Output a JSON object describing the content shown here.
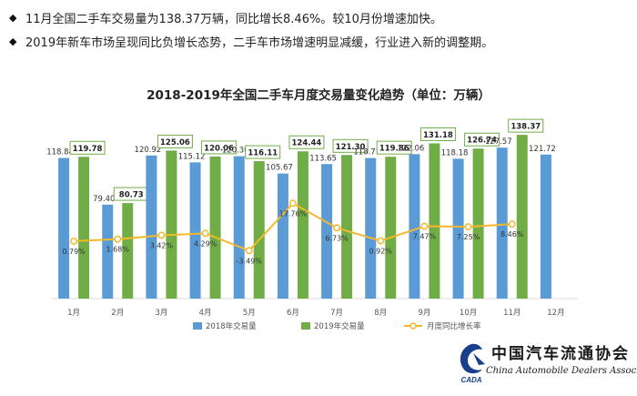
{
  "bullets": [
    {
      "marker": "◆",
      "text": "11月全国二手车交易量为138.37万辆，同比增长8.46%。较10月份增速加快。"
    },
    {
      "marker": "◆",
      "text": "2019年新车市场呈现同比负增长态势，二手车市场增速明显减缓，行业进入新的调整期。"
    }
  ],
  "logo": {
    "cn": "中国汽车流通协会",
    "en": "China Automobile Dealers Association",
    "mark_text": "CADA"
  },
  "chart_data": {
    "type": "bar",
    "title": "2018-2019年全国二手车月度交易量变化趋势（单位：万辆）",
    "categories": [
      "1月",
      "2月",
      "3月",
      "4月",
      "5月",
      "6月",
      "7月",
      "8月",
      "9月",
      "10月",
      "11月",
      "12月"
    ],
    "series": [
      {
        "name": "2018年交易量",
        "kind": "bar",
        "color": "#5b9bd5",
        "values": [
          118.84,
          79.4,
          120.92,
          115.12,
          120.3,
          105.67,
          113.65,
          118.77,
          122.06,
          118.18,
          127.57,
          121.72
        ],
        "labels": [
          "118.84",
          "79.40",
          "120.92",
          "115.12",
          "120.30",
          "105.67",
          "113.65",
          "118.77",
          "122.06",
          "118.18",
          "127.57",
          "121.72"
        ]
      },
      {
        "name": "2019年交易量",
        "kind": "bar",
        "color": "#70ad47",
        "values": [
          119.78,
          80.73,
          125.06,
          120.06,
          116.11,
          124.44,
          121.3,
          119.86,
          131.18,
          126.74,
          138.37,
          null
        ],
        "labels": [
          "119.78",
          "80.73",
          "125.06",
          "120.06",
          "116.11",
          "124.44",
          "121.30",
          "119.86",
          "131.18",
          "126.74",
          "138.37",
          null
        ]
      },
      {
        "name": "月度同比增长率",
        "kind": "line",
        "color": "#f2b92c",
        "axis": "secondary",
        "values": [
          0.79,
          1.68,
          3.42,
          4.29,
          -3.49,
          17.76,
          6.73,
          0.92,
          7.47,
          7.25,
          8.46,
          null
        ],
        "labels": [
          "0.79%",
          "1.68%",
          "3.42%",
          "4.29%",
          "-3.49%",
          "17.76%",
          "6.73%",
          "0.92%",
          "7.47%",
          "7.25%",
          "8.46%",
          null
        ]
      }
    ],
    "ylim": [
      0,
      160
    ],
    "y2lim": [
      -25,
      60
    ],
    "grid": false,
    "legend_position": "bottom"
  }
}
